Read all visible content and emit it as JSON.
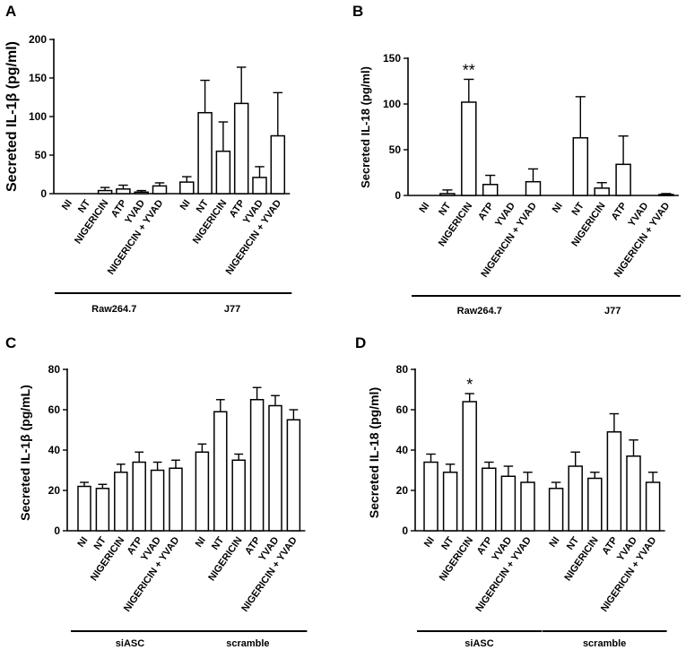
{
  "figure": {
    "panels": [
      {
        "letter": "A",
        "chart_data": {
          "type": "bar",
          "title": "",
          "xlabel": "",
          "ylabel": "Secreted IL-1β (pg/ml)",
          "ylim": [
            0,
            200
          ],
          "yticks": [
            0,
            50,
            100,
            150,
            200
          ],
          "categories": [
            "NI",
            "NT",
            "NIGERICIN",
            "ATP",
            "YVAD",
            "NIGERICIN + YVAD",
            "NI",
            "NT",
            "NIGERICIN",
            "ATP",
            "YVAD",
            "NIGERICIN + YVAD"
          ],
          "values": [
            0,
            0,
            4,
            6,
            2,
            10,
            15,
            105,
            55,
            117,
            21,
            75
          ],
          "errors": [
            0,
            0,
            4,
            5,
            2,
            4,
            7,
            42,
            38,
            47,
            14,
            56
          ],
          "groups": [
            {
              "label": "Raw264.7",
              "start": 0,
              "end": 5
            },
            {
              "label": "J77",
              "start": 6,
              "end": 11
            }
          ],
          "significance": []
        }
      },
      {
        "letter": "B",
        "chart_data": {
          "type": "bar",
          "title": "",
          "xlabel": "",
          "ylabel": "Secreted IL-18 (pg/ml)",
          "ylim": [
            0,
            150
          ],
          "yticks": [
            0,
            50,
            100,
            150
          ],
          "categories": [
            "NI",
            "NT",
            "NIGERICIN",
            "ATP",
            "YVAD",
            "NIGERICIN + YVAD",
            "NI",
            "NT",
            "NIGERICIN",
            "ATP",
            "YVAD",
            "NIGERICIN + YVAD"
          ],
          "values": [
            0,
            2,
            102,
            12,
            0,
            15,
            0,
            63,
            8,
            34,
            0,
            1
          ],
          "errors": [
            0,
            4,
            25,
            10,
            0,
            14,
            0,
            45,
            6,
            31,
            0,
            1
          ],
          "groups": [
            {
              "label": "Raw264.7",
              "start": 0,
              "end": 5
            },
            {
              "label": "J77",
              "start": 6,
              "end": 11
            }
          ],
          "significance": [
            {
              "index": 2,
              "text": "**"
            }
          ]
        }
      },
      {
        "letter": "C",
        "chart_data": {
          "type": "bar",
          "title": "",
          "xlabel": "",
          "ylabel": "Secreted IL-1β (pg/mL)",
          "ylim": [
            0,
            80
          ],
          "yticks": [
            0,
            20,
            40,
            60,
            80
          ],
          "categories": [
            "NI",
            "NT",
            "NIGERICIN",
            "ATP",
            "YVAD",
            "NIGERICIN + YVAD",
            "NI",
            "NT",
            "NIGERICIN",
            "ATP",
            "YVAD",
            "NIGERICIN + YVAD"
          ],
          "values": [
            22,
            21,
            29,
            34,
            30,
            31,
            39,
            59,
            35,
            65,
            62,
            55
          ],
          "errors": [
            2,
            2,
            4,
            5,
            4,
            4,
            4,
            6,
            3,
            6,
            5,
            5
          ],
          "groups": [
            {
              "label": "siASC",
              "start": 0,
              "end": 5
            },
            {
              "label": "scramble",
              "start": 6,
              "end": 11
            }
          ],
          "significance": []
        }
      },
      {
        "letter": "D",
        "chart_data": {
          "type": "bar",
          "title": "",
          "xlabel": "",
          "ylabel": "Secreted IL-18 (pg/ml)",
          "ylim": [
            0,
            80
          ],
          "yticks": [
            0,
            20,
            40,
            60,
            80
          ],
          "categories": [
            "NI",
            "NT",
            "NIGERICIN",
            "ATP",
            "YVAD",
            "NIGERICIN + YVAD",
            "NI",
            "NT",
            "NIGERICIN",
            "ATP",
            "YVAD",
            "NIGERICIN + YVAD"
          ],
          "values": [
            34,
            29,
            64,
            31,
            27,
            24,
            21,
            32,
            26,
            49,
            37,
            24
          ],
          "errors": [
            4,
            4,
            4,
            3,
            5,
            5,
            3,
            7,
            3,
            9,
            8,
            5
          ],
          "groups": [
            {
              "label": "siASC",
              "start": 0,
              "end": 5
            },
            {
              "label": "scramble",
              "start": 6,
              "end": 11
            }
          ],
          "significance": [
            {
              "index": 2,
              "text": "*"
            }
          ]
        }
      }
    ]
  }
}
